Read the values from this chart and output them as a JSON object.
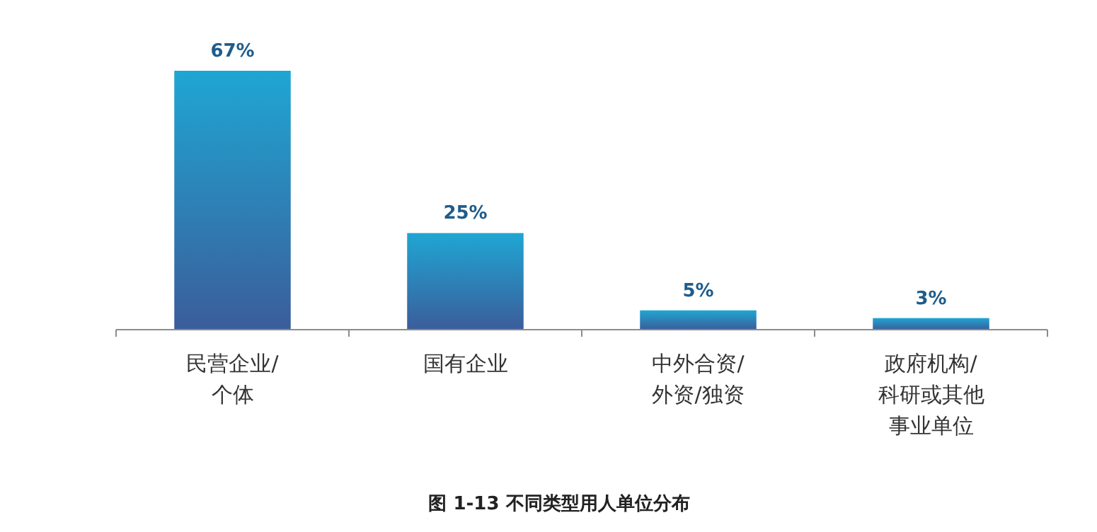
{
  "chart_data": {
    "type": "bar",
    "title": "图 1-13    不同类型用人单位分布",
    "categories": [
      "民营企业/个体",
      "国有企业",
      "中外合资/外资/独资",
      "政府机构/科研或其他事业单位"
    ],
    "values": [
      67,
      25,
      5,
      3
    ],
    "color": "#1fa6d3",
    "data_labels": true,
    "value_labels": [
      "67%",
      "25%",
      "5%",
      "3%"
    ]
  }
}
